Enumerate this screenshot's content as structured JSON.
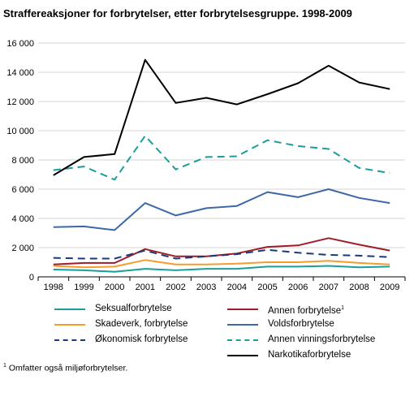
{
  "title": "Straffereaksjoner for forbrytelser, etter forbrytelsesgruppe. 1998-2009",
  "footnote_mark": "1",
  "footnote_text": "Omfatter også miljøforbrytelser.",
  "chart_data": {
    "type": "line",
    "title": "Straffereaksjoner for forbrytelser, etter forbrytelsesgruppe. 1998-2009",
    "xlabel": "",
    "ylabel": "",
    "x": [
      "1998",
      "1999",
      "2000",
      "2001",
      "2002",
      "2003",
      "2004",
      "2005",
      "2006",
      "2007",
      "2008",
      "2009"
    ],
    "ylim": [
      0,
      16000
    ],
    "yticks": [
      0,
      2000,
      4000,
      6000,
      8000,
      10000,
      12000,
      14000,
      16000
    ],
    "ytick_labels": [
      "0",
      "2 000",
      "4 000",
      "6 000",
      "8 000",
      "10 000",
      "12 000",
      "14 000",
      "16 000"
    ],
    "grid": "horizontal",
    "legend_position": "bottom",
    "series": [
      {
        "name": "Seksualforbrytelse",
        "color": "#1a9e9a",
        "dash": "solid",
        "footnote": "",
        "values": [
          500,
          450,
          350,
          550,
          450,
          550,
          550,
          700,
          700,
          750,
          650,
          700
        ]
      },
      {
        "name": "Annen forbrytelse",
        "color": "#a01c2a",
        "dash": "solid",
        "footnote": "1",
        "values": [
          850,
          950,
          950,
          1900,
          1400,
          1400,
          1600,
          2050,
          2150,
          2650,
          2200,
          1800
        ]
      },
      {
        "name": "Skadeverk, forbrytelse",
        "color": "#f59c2e",
        "dash": "solid",
        "footnote": "",
        "values": [
          750,
          650,
          700,
          1150,
          850,
          850,
          900,
          1000,
          1000,
          1100,
          950,
          850
        ]
      },
      {
        "name": "Voldsforbrytelse",
        "color": "#3c68a8",
        "dash": "solid",
        "footnote": "",
        "values": [
          3400,
          3450,
          3200,
          5050,
          4200,
          4700,
          4850,
          5800,
          5450,
          6000,
          5400,
          5050
        ]
      },
      {
        "name": "Økonomisk forbrytelse",
        "color": "#1a3a7a",
        "dash": "dashed",
        "footnote": "",
        "values": [
          1300,
          1250,
          1250,
          1800,
          1250,
          1400,
          1550,
          1850,
          1650,
          1500,
          1450,
          1350
        ]
      },
      {
        "name": "Annen vinningsforbrytelse",
        "color": "#1a9e9a",
        "dash": "dashed",
        "footnote": "",
        "values": [
          7300,
          7550,
          6650,
          9650,
          7350,
          8200,
          8250,
          9350,
          8950,
          8750,
          7450,
          7100
        ]
      },
      {
        "name": "Narkotikaforbrytelse",
        "color": "#000000",
        "dash": "solid",
        "footnote": "",
        "values": [
          6950,
          8200,
          8400,
          14850,
          11900,
          12250,
          11800,
          12500,
          13250,
          14450,
          13300,
          12850
        ]
      }
    ]
  }
}
